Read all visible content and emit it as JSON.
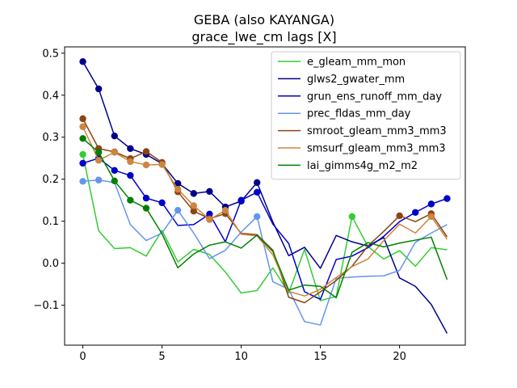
{
  "chart_data": {
    "type": "line",
    "title": "GEBA (also KAYANGA)",
    "subtitle": "grace_lwe_cm lags [X]",
    "xlabel": "",
    "ylabel": "",
    "xlim": [
      -1.15,
      24.15
    ],
    "ylim": [
      -0.195,
      0.515
    ],
    "xticks": [
      0,
      5,
      10,
      15,
      20
    ],
    "yticks": [
      -0.1,
      0.0,
      0.1,
      0.2,
      0.3,
      0.4,
      0.5
    ],
    "ytick_labels": [
      "−0.1",
      "0.0",
      "0.1",
      "0.2",
      "0.3",
      "0.4",
      "0.5"
    ],
    "grid": false,
    "legend_position": "upper-right",
    "x": [
      0,
      1,
      2,
      3,
      4,
      5,
      6,
      7,
      8,
      9,
      10,
      11,
      12,
      13,
      14,
      15,
      16,
      17,
      18,
      19,
      20,
      21,
      22,
      23
    ],
    "series": [
      {
        "name": "e_gleam_mm_mon",
        "color": "#32cd32",
        "values": [
          0.259,
          0.077,
          0.035,
          0.037,
          0.017,
          0.078,
          0.003,
          0.033,
          0.021,
          -0.021,
          -0.071,
          -0.065,
          -0.011,
          -0.071,
          0.033,
          -0.089,
          -0.079,
          0.111,
          0.04,
          0.01,
          0.03,
          -0.007,
          0.037,
          0.032
        ],
        "markers": [
          0,
          17
        ]
      },
      {
        "name": "glws2_gwater_mm",
        "color": "#00008b",
        "values": [
          0.48,
          0.415,
          0.303,
          0.273,
          0.259,
          0.237,
          0.19,
          0.166,
          0.171,
          0.134,
          0.148,
          0.192,
          0.098,
          0.018,
          0.038,
          -0.012,
          0.066,
          0.051,
          0.041,
          0.061,
          -0.035,
          -0.055,
          -0.098,
          -0.167
        ],
        "markers": [
          0,
          1,
          2,
          3,
          4,
          5,
          6,
          7,
          8,
          9,
          10,
          11
        ]
      },
      {
        "name": "grun_ens_runoff_mm_day",
        "color": "#0000cd",
        "values": [
          0.238,
          0.25,
          0.221,
          0.209,
          0.155,
          0.144,
          0.09,
          0.092,
          0.117,
          0.051,
          0.15,
          0.169,
          0.093,
          0.047,
          -0.068,
          -0.086,
          0.009,
          0.017,
          0.037,
          0.064,
          0.099,
          0.121,
          0.141,
          0.154
        ],
        "markers": [
          0,
          1,
          2,
          3,
          4,
          5,
          8,
          10,
          11,
          21,
          22,
          23
        ]
      },
      {
        "name": "prec_fldas_mm_day",
        "color": "#6495ed",
        "values": [
          0.195,
          0.198,
          0.192,
          0.092,
          0.054,
          0.072,
          0.126,
          0.072,
          0.011,
          0.031,
          0.074,
          0.111,
          -0.044,
          -0.062,
          -0.139,
          -0.147,
          -0.036,
          -0.033,
          -0.031,
          -0.03,
          -0.017,
          0.05,
          0.072,
          0.092
        ],
        "markers": [
          0,
          1,
          6,
          11
        ]
      },
      {
        "name": "smroot_gleam_mm3_mm3",
        "color": "#8b4513",
        "values": [
          0.344,
          0.273,
          0.265,
          0.249,
          0.266,
          0.24,
          0.17,
          0.124,
          0.106,
          0.118,
          0.071,
          0.068,
          0.031,
          -0.081,
          -0.094,
          -0.068,
          -0.041,
          -0.007,
          0.041,
          0.076,
          0.113,
          0.099,
          0.118,
          0.063
        ],
        "markers": [
          0,
          1,
          2,
          3,
          4,
          5,
          6,
          7,
          8,
          9,
          20,
          22
        ]
      },
      {
        "name": "smsurf_gleam_mm3_mm3",
        "color": "#cd853f",
        "values": [
          0.325,
          0.245,
          0.264,
          0.242,
          0.234,
          0.235,
          0.176,
          0.137,
          0.104,
          0.126,
          0.069,
          0.065,
          0.02,
          -0.067,
          -0.078,
          -0.062,
          -0.034,
          -0.008,
          0.01,
          0.054,
          0.093,
          0.072,
          0.111,
          0.057
        ],
        "markers": [
          0,
          1,
          2,
          3,
          4,
          5,
          6,
          7,
          8,
          9,
          22
        ]
      },
      {
        "name": "lai_gimms4g_m2_m2",
        "color": "#008000",
        "values": [
          0.297,
          0.264,
          0.196,
          0.15,
          0.131,
          0.07,
          -0.011,
          0.022,
          0.043,
          0.051,
          0.036,
          0.067,
          0.028,
          -0.064,
          -0.052,
          -0.055,
          -0.082,
          0.026,
          0.049,
          0.039,
          0.048,
          0.055,
          0.062,
          -0.039
        ],
        "markers": [
          0,
          1,
          2,
          3,
          4
        ]
      }
    ]
  }
}
